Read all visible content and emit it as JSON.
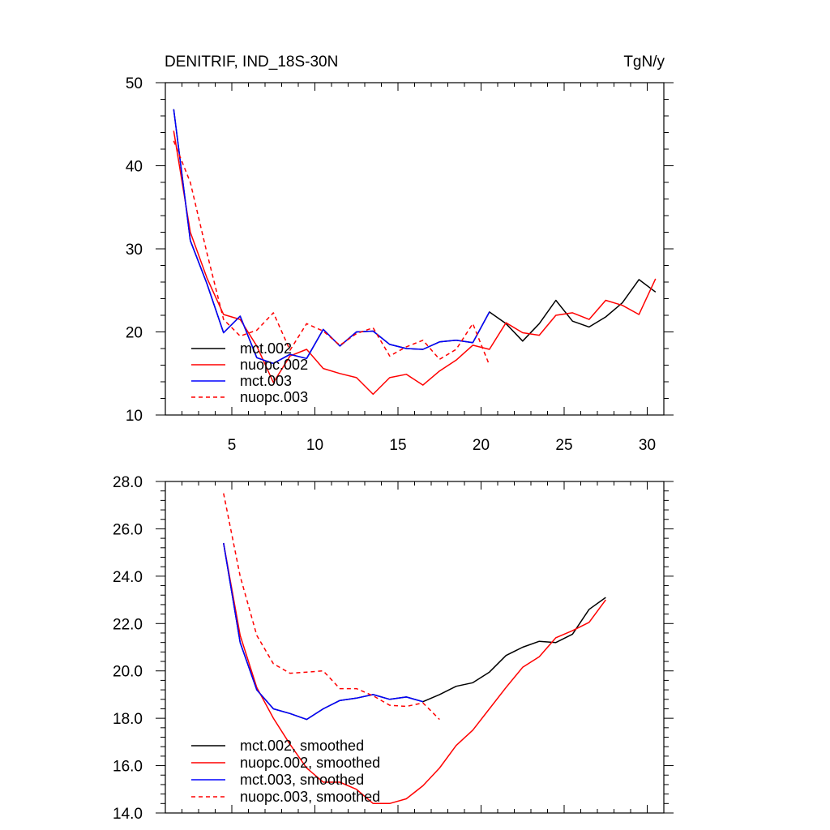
{
  "chart_data": [
    {
      "type": "line",
      "title": "DENITRIF, IND_18S-30N",
      "units": "TgN/y",
      "xlim": [
        1,
        31
      ],
      "ylim": [
        10,
        50
      ],
      "xticks": [
        5,
        10,
        15,
        20,
        25,
        30
      ],
      "xtick_labels": [
        "5",
        "10",
        "15",
        "20",
        "25",
        "30"
      ],
      "yticks": [
        10,
        20,
        30,
        40,
        50
      ],
      "ytick_labels": [
        "10",
        "20",
        "30",
        "40",
        "50"
      ],
      "legend_position": "bottom-left",
      "series": [
        {
          "name": "mct.002",
          "color": "#000000",
          "dash": "solid",
          "x": [
            1.5,
            2.5,
            3.5,
            4.5,
            5.5,
            6.5,
            7.5,
            8.5,
            9.5,
            10.5,
            11.5,
            12.5,
            13.5,
            14.5,
            15.5,
            16.5,
            17.5,
            18.5,
            19.5,
            20.5,
            21.5,
            22.5,
            23.5,
            24.5,
            25.5,
            26.5,
            27.5,
            28.5,
            29.5,
            30.5
          ],
          "y": [
            46.8,
            31.0,
            25.8,
            19.9,
            21.9,
            16.9,
            16.2,
            17.3,
            16.8,
            20.3,
            18.3,
            20.0,
            20.1,
            18.5,
            18.0,
            17.9,
            18.8,
            19.0,
            18.7,
            22.4,
            21.0,
            18.9,
            21.0,
            23.8,
            21.3,
            20.6,
            21.8,
            23.5,
            26.3,
            24.8
          ]
        },
        {
          "name": "nuopc.002",
          "color": "#ff0000",
          "dash": "solid",
          "x": [
            1.5,
            2.5,
            3.5,
            4.5,
            5.5,
            6.5,
            7.5,
            8.5,
            9.5,
            10.5,
            11.5,
            12.5,
            13.5,
            14.5,
            15.5,
            16.5,
            17.5,
            18.5,
            19.5,
            20.5,
            21.5,
            22.5,
            23.5,
            24.5,
            25.5,
            26.5,
            27.5,
            28.5,
            29.5,
            30.5
          ],
          "y": [
            44.2,
            32.0,
            26.5,
            22.1,
            21.5,
            18.3,
            13.9,
            17.1,
            17.9,
            15.6,
            15.0,
            14.5,
            12.5,
            14.5,
            14.9,
            13.6,
            15.3,
            16.6,
            18.4,
            17.9,
            21.1,
            19.9,
            19.6,
            22.0,
            22.3,
            21.5,
            23.8,
            23.2,
            22.1,
            26.4
          ]
        },
        {
          "name": "mct.003",
          "color": "#0000ff",
          "dash": "solid",
          "x": [
            1.5,
            2.5,
            3.5,
            4.5,
            5.5,
            6.5,
            7.5,
            8.5,
            9.5,
            10.5,
            11.5,
            12.5,
            13.5,
            14.5,
            15.5,
            16.5,
            17.5,
            18.5,
            19.5,
            20.5
          ],
          "y": [
            46.8,
            31.0,
            25.8,
            19.9,
            21.9,
            16.9,
            16.2,
            17.3,
            16.8,
            20.3,
            18.3,
            20.0,
            20.1,
            18.5,
            18.0,
            17.9,
            18.8,
            19.0,
            18.7,
            22.4
          ]
        },
        {
          "name": "nuopc.003",
          "color": "#ff0000",
          "dash": "dashed",
          "x": [
            1.5,
            2.5,
            3.5,
            4.5,
            5.5,
            6.5,
            7.5,
            8.5,
            9.5,
            10.5,
            11.5,
            12.5,
            13.5,
            14.5,
            15.5,
            16.5,
            17.5,
            18.5,
            19.5,
            20.5
          ],
          "y": [
            43.0,
            38.0,
            29.5,
            21.5,
            19.5,
            20.2,
            22.3,
            17.8,
            21.0,
            20.1,
            18.4,
            19.8,
            20.5,
            17.1,
            18.2,
            19.0,
            16.7,
            17.9,
            21.0,
            16.0
          ]
        }
      ]
    },
    {
      "type": "line",
      "title": "",
      "xlim": [
        1,
        31
      ],
      "ylim": [
        14.0,
        28.0
      ],
      "xticks": [
        5,
        10,
        15,
        20,
        25,
        30
      ],
      "yticks": [
        14,
        16,
        18,
        20,
        22,
        24,
        26,
        28
      ],
      "ytick_labels": [
        "14.0",
        "16.0",
        "18.0",
        "20.0",
        "22.0",
        "24.0",
        "26.0",
        "28.0"
      ],
      "legend_position": "bottom-left",
      "series": [
        {
          "name": "mct.002, smoothed",
          "color": "#000000",
          "dash": "solid",
          "x": [
            4.5,
            5.5,
            6.5,
            7.5,
            8.5,
            9.5,
            10.5,
            11.5,
            12.5,
            13.5,
            14.5,
            15.5,
            16.5,
            17.5,
            18.5,
            19.5,
            20.5,
            21.5,
            22.5,
            23.5,
            24.5,
            25.5,
            26.5,
            27.5
          ],
          "y": [
            25.4,
            21.2,
            19.2,
            18.4,
            18.2,
            17.95,
            18.4,
            18.75,
            18.85,
            19.0,
            18.8,
            18.9,
            18.7,
            19.0,
            19.35,
            19.5,
            19.95,
            20.65,
            21.0,
            21.25,
            21.2,
            21.55,
            22.6,
            23.1
          ]
        },
        {
          "name": "nuopc.002, smoothed",
          "color": "#ff0000",
          "dash": "solid",
          "x": [
            4.5,
            5.5,
            6.5,
            7.5,
            8.5,
            9.5,
            10.5,
            11.5,
            12.5,
            13.5,
            14.5,
            15.5,
            16.5,
            17.5,
            18.5,
            19.5,
            20.5,
            21.5,
            22.5,
            23.5,
            24.5,
            25.5,
            26.5,
            27.5
          ],
          "y": [
            25.4,
            21.5,
            19.3,
            18.0,
            16.9,
            15.9,
            15.3,
            15.3,
            15.0,
            14.4,
            14.4,
            14.6,
            15.15,
            15.9,
            16.85,
            17.5,
            18.4,
            19.3,
            20.15,
            20.6,
            21.4,
            21.7,
            22.05,
            23.0
          ]
        },
        {
          "name": "mct.003, smoothed",
          "color": "#0000ff",
          "dash": "solid",
          "x": [
            4.5,
            5.5,
            6.5,
            7.5,
            8.5,
            9.5,
            10.5,
            11.5,
            12.5,
            13.5,
            14.5,
            15.5,
            16.5
          ],
          "y": [
            25.4,
            21.2,
            19.2,
            18.4,
            18.2,
            17.95,
            18.4,
            18.75,
            18.85,
            19.0,
            18.8,
            18.9,
            18.7
          ]
        },
        {
          "name": "nuopc.003, smoothed",
          "color": "#ff0000",
          "dash": "dashed",
          "x": [
            4.5,
            5.5,
            6.5,
            7.5,
            8.5,
            9.5,
            10.5,
            11.5,
            12.5,
            13.5,
            14.5,
            15.5,
            16.5,
            17.5
          ],
          "y": [
            27.5,
            24.0,
            21.5,
            20.3,
            19.9,
            19.95,
            20.0,
            19.25,
            19.25,
            18.95,
            18.55,
            18.5,
            18.65,
            17.95
          ]
        }
      ]
    }
  ]
}
